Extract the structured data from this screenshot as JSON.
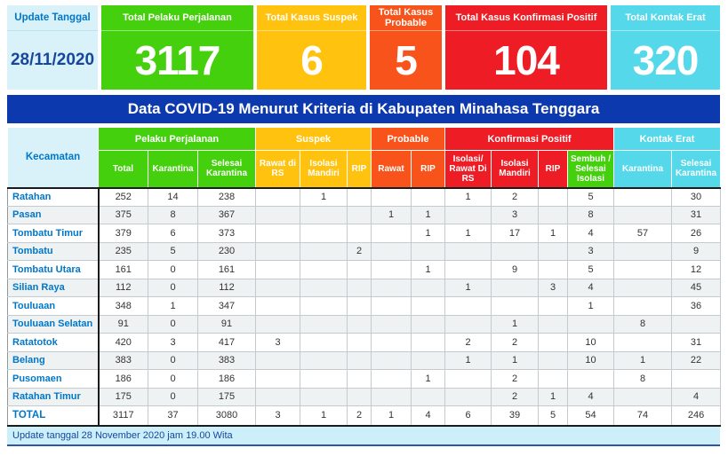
{
  "colors": {
    "green": "#45d00e",
    "yellow": "#ffc20e",
    "orange": "#f8531a",
    "red": "#ee1c25",
    "cyan": "#55d8ea",
    "banner_blue": "#0d39ae",
    "light_blue": "#d9f1f8",
    "link_blue": "#0077c8",
    "navy_text": "#16479d"
  },
  "summary_cards": {
    "update_label": "Update Tanggal",
    "update_date": "28/11/2020",
    "cards": [
      {
        "label": "Total Pelaku Perjalanan",
        "value": "3117",
        "color": "#45d00e"
      },
      {
        "label": "Total Kasus Suspek",
        "value": "6",
        "color": "#ffc20e"
      },
      {
        "label": "Total Kasus Probable",
        "value": "5",
        "color": "#f8531a"
      },
      {
        "label": "Total Kasus Konfirmasi Positif",
        "value": "104",
        "color": "#ee1c25"
      },
      {
        "label": "Total Kontak Erat",
        "value": "320",
        "color": "#55d8ea"
      }
    ]
  },
  "banner": {
    "title": "Data COVID-19 Menurut Kriteria di Kabupaten Minahasa Tenggara"
  },
  "table": {
    "kecamatan_header": "Kecamatan",
    "groups": [
      {
        "label": "Pelaku Perjalanan"
      },
      {
        "label": "Suspek"
      },
      {
        "label": "Probable"
      },
      {
        "label": "Konfirmasi Positif"
      },
      {
        "label": "Kontak Erat"
      }
    ],
    "columns": [
      {
        "label": "Total"
      },
      {
        "label": "Karantina"
      },
      {
        "label": "Selesai Karantina"
      },
      {
        "label": "Rawat di RS"
      },
      {
        "label": "Isolasi Mandiri"
      },
      {
        "label": "RIP"
      },
      {
        "label": "Rawat"
      },
      {
        "label": "RIP"
      },
      {
        "label": "Isolasi/ Rawat Di RS"
      },
      {
        "label": "Isolasi Mandiri"
      },
      {
        "label": "RIP"
      },
      {
        "label": "Sembuh / Selesai Isolasi"
      },
      {
        "label": "Karantina"
      },
      {
        "label": "Selesai Karantina"
      }
    ],
    "rows": [
      {
        "name": "Ratahan",
        "values": [
          "252",
          "14",
          "238",
          "",
          "1",
          "",
          "",
          "",
          "1",
          "2",
          "",
          "5",
          "",
          "30"
        ]
      },
      {
        "name": "Pasan",
        "values": [
          "375",
          "8",
          "367",
          "",
          "",
          "",
          "1",
          "1",
          "",
          "3",
          "",
          "8",
          "",
          "31"
        ]
      },
      {
        "name": "Tombatu Timur",
        "values": [
          "379",
          "6",
          "373",
          "",
          "",
          "",
          "",
          "1",
          "1",
          "17",
          "1",
          "4",
          "57",
          "26"
        ]
      },
      {
        "name": "Tombatu",
        "values": [
          "235",
          "5",
          "230",
          "",
          "",
          "2",
          "",
          "",
          "",
          "",
          "",
          "3",
          "",
          "9"
        ]
      },
      {
        "name": "Tombatu Utara",
        "values": [
          "161",
          "0",
          "161",
          "",
          "",
          "",
          "",
          "1",
          "",
          "9",
          "",
          "5",
          "",
          "12"
        ]
      },
      {
        "name": "Silian Raya",
        "values": [
          "112",
          "0",
          "112",
          "",
          "",
          "",
          "",
          "",
          "1",
          "",
          "3",
          "4",
          "",
          "45"
        ]
      },
      {
        "name": "Touluaan",
        "values": [
          "348",
          "1",
          "347",
          "",
          "",
          "",
          "",
          "",
          "",
          "",
          "",
          "1",
          "",
          "36"
        ]
      },
      {
        "name": "Touluaan Selatan",
        "values": [
          "91",
          "0",
          "91",
          "",
          "",
          "",
          "",
          "",
          "",
          "1",
          "",
          "",
          "8",
          ""
        ]
      },
      {
        "name": "Ratatotok",
        "values": [
          "420",
          "3",
          "417",
          "3",
          "",
          "",
          "",
          "",
          "2",
          "2",
          "",
          "10",
          "",
          "31"
        ]
      },
      {
        "name": "Belang",
        "values": [
          "383",
          "0",
          "383",
          "",
          "",
          "",
          "",
          "",
          "1",
          "1",
          "",
          "10",
          "1",
          "22"
        ]
      },
      {
        "name": "Pusomaen",
        "values": [
          "186",
          "0",
          "186",
          "",
          "",
          "",
          "",
          "1",
          "",
          "2",
          "",
          "",
          "8",
          ""
        ]
      },
      {
        "name": "Ratahan Timur",
        "values": [
          "175",
          "0",
          "175",
          "",
          "",
          "",
          "",
          "",
          "",
          "2",
          "1",
          "4",
          "",
          "4"
        ]
      }
    ],
    "total_row": {
      "name": "TOTAL",
      "values": [
        "3117",
        "37",
        "3080",
        "3",
        "1",
        "2",
        "1",
        "4",
        "6",
        "39",
        "5",
        "54",
        "74",
        "246"
      ]
    }
  },
  "footer": {
    "text": "Update tanggal 28 November 2020 jam 19.00 Wita"
  }
}
